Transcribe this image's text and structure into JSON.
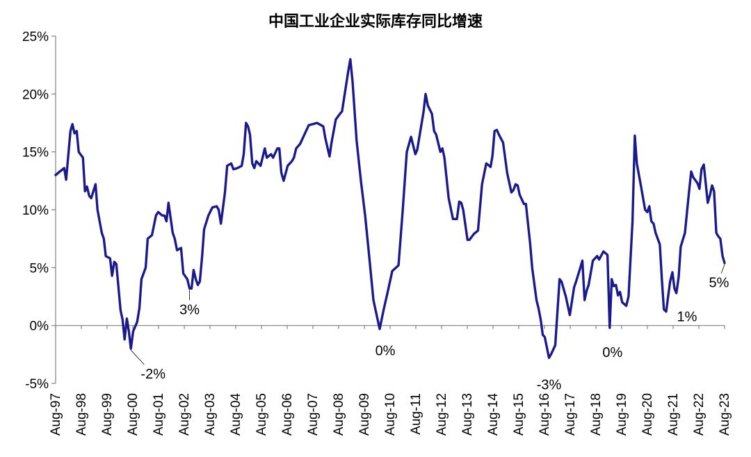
{
  "chart_data": {
    "type": "line",
    "title": "中国工业企业实际库存同比增速",
    "xlabel": "",
    "ylabel": "",
    "ylim": [
      -5,
      25
    ],
    "y_ticks": [
      "-5%",
      "0%",
      "5%",
      "10%",
      "15%",
      "20%",
      "25%"
    ],
    "x_tick_labels": [
      "Aug-97",
      "Aug-98",
      "Aug-99",
      "Aug-00",
      "Aug-01",
      "Aug-02",
      "Aug-03",
      "Aug-04",
      "Aug-05",
      "Aug-06",
      "Aug-07",
      "Aug-08",
      "Aug-09",
      "Aug-10",
      "Aug-11",
      "Aug-12",
      "Aug-13",
      "Aug-14",
      "Aug-15",
      "Aug-16",
      "Aug-17",
      "Aug-18",
      "Aug-19",
      "Aug-20",
      "Aug-21",
      "Aug-22",
      "Aug-23"
    ],
    "grid": false,
    "line_color": "#1a1a8c",
    "series": [
      {
        "values": [
          [
            1997.58,
            13.0
          ],
          [
            1997.75,
            13.3
          ],
          [
            1997.92,
            13.6
          ],
          [
            1998.0,
            12.6
          ],
          [
            1998.17,
            16.8
          ],
          [
            1998.25,
            17.4
          ],
          [
            1998.33,
            16.6
          ],
          [
            1998.42,
            16.8
          ],
          [
            1998.5,
            15.0
          ],
          [
            1998.67,
            14.5
          ],
          [
            1998.75,
            11.6
          ],
          [
            1998.83,
            12.0
          ],
          [
            1998.92,
            11.2
          ],
          [
            1999.0,
            11.0
          ],
          [
            1999.17,
            12.2
          ],
          [
            1999.25,
            10.0
          ],
          [
            1999.42,
            8.0
          ],
          [
            1999.5,
            7.5
          ],
          [
            1999.58,
            6.0
          ],
          [
            1999.75,
            5.8
          ],
          [
            1999.83,
            4.3
          ],
          [
            1999.92,
            5.5
          ],
          [
            2000.0,
            5.3
          ],
          [
            2000.17,
            1.3
          ],
          [
            2000.25,
            0.5
          ],
          [
            2000.33,
            -1.2
          ],
          [
            2000.42,
            0.6
          ],
          [
            2000.5,
            -0.5
          ],
          [
            2000.58,
            -2.0
          ],
          [
            2000.67,
            -0.5
          ],
          [
            2000.83,
            0.3
          ],
          [
            2000.92,
            1.5
          ],
          [
            2001.0,
            4.0
          ],
          [
            2001.17,
            5.0
          ],
          [
            2001.25,
            7.5
          ],
          [
            2001.42,
            7.8
          ],
          [
            2001.58,
            9.5
          ],
          [
            2001.67,
            9.8
          ],
          [
            2001.83,
            9.5
          ],
          [
            2001.92,
            9.5
          ],
          [
            2002.0,
            9.0
          ],
          [
            2002.08,
            10.6
          ],
          [
            2002.25,
            8.0
          ],
          [
            2002.33,
            7.5
          ],
          [
            2002.42,
            6.5
          ],
          [
            2002.58,
            6.7
          ],
          [
            2002.67,
            4.5
          ],
          [
            2002.83,
            4.0
          ],
          [
            2002.92,
            3.2
          ],
          [
            2003.0,
            3.2
          ],
          [
            2003.08,
            4.8
          ],
          [
            2003.17,
            4.0
          ],
          [
            2003.25,
            3.5
          ],
          [
            2003.33,
            3.8
          ],
          [
            2003.42,
            6.0
          ],
          [
            2003.5,
            8.3
          ],
          [
            2003.67,
            9.5
          ],
          [
            2003.83,
            10.2
          ],
          [
            2004.0,
            10.3
          ],
          [
            2004.08,
            10.0
          ],
          [
            2004.17,
            8.8
          ],
          [
            2004.33,
            11.5
          ],
          [
            2004.42,
            13.8
          ],
          [
            2004.58,
            14.0
          ],
          [
            2004.67,
            13.5
          ],
          [
            2004.83,
            13.6
          ],
          [
            2005.0,
            13.8
          ],
          [
            2005.08,
            14.8
          ],
          [
            2005.17,
            17.5
          ],
          [
            2005.25,
            17.2
          ],
          [
            2005.33,
            16.5
          ],
          [
            2005.42,
            14.0
          ],
          [
            2005.5,
            13.6
          ],
          [
            2005.58,
            14.2
          ],
          [
            2005.75,
            13.8
          ],
          [
            2005.92,
            15.3
          ],
          [
            2006.0,
            14.5
          ],
          [
            2006.17,
            14.8
          ],
          [
            2006.25,
            14.5
          ],
          [
            2006.42,
            15.3
          ],
          [
            2006.5,
            15.3
          ],
          [
            2006.58,
            13.2
          ],
          [
            2006.67,
            12.5
          ],
          [
            2006.83,
            13.8
          ],
          [
            2007.0,
            14.2
          ],
          [
            2007.08,
            14.5
          ],
          [
            2007.17,
            15.3
          ],
          [
            2007.33,
            15.7
          ],
          [
            2007.5,
            16.5
          ],
          [
            2007.67,
            17.3
          ],
          [
            2007.83,
            17.4
          ],
          [
            2008.0,
            17.5
          ],
          [
            2008.25,
            17.2
          ],
          [
            2008.33,
            16.2
          ],
          [
            2008.5,
            14.6
          ],
          [
            2008.58,
            15.8
          ],
          [
            2008.75,
            17.8
          ],
          [
            2008.92,
            18.3
          ],
          [
            2009.0,
            18.5
          ],
          [
            2009.25,
            22.0
          ],
          [
            2009.33,
            23.0
          ],
          [
            2009.42,
            21.0
          ],
          [
            2009.58,
            16.0
          ],
          [
            2009.75,
            12.5
          ],
          [
            2009.92,
            9.5
          ],
          [
            2010.08,
            6.0
          ],
          [
            2010.25,
            2.2
          ],
          [
            2010.42,
            0.5
          ],
          [
            2010.5,
            -0.3
          ],
          [
            2010.67,
            1.5
          ],
          [
            2010.83,
            3.0
          ],
          [
            2011.0,
            4.7
          ],
          [
            2011.25,
            5.2
          ],
          [
            2011.42,
            10.0
          ],
          [
            2011.58,
            15.0
          ],
          [
            2011.75,
            16.3
          ],
          [
            2011.92,
            14.8
          ],
          [
            2012.0,
            15.2
          ],
          [
            2012.25,
            18.5
          ],
          [
            2012.33,
            20.0
          ],
          [
            2012.42,
            19.0
          ],
          [
            2012.58,
            18.3
          ],
          [
            2012.67,
            16.8
          ],
          [
            2012.75,
            16.5
          ],
          [
            2012.92,
            15.0
          ],
          [
            2013.0,
            15.3
          ],
          [
            2013.08,
            14.5
          ],
          [
            2013.25,
            11.0
          ],
          [
            2013.42,
            9.2
          ],
          [
            2013.58,
            9.2
          ],
          [
            2013.67,
            10.7
          ],
          [
            2013.75,
            10.6
          ],
          [
            2013.83,
            10.0
          ],
          [
            2014.0,
            7.4
          ],
          [
            2014.08,
            7.4
          ],
          [
            2014.25,
            7.9
          ],
          [
            2014.42,
            8.2
          ],
          [
            2014.58,
            12.2
          ],
          [
            2014.75,
            14.0
          ],
          [
            2014.92,
            13.7
          ],
          [
            2015.0,
            14.7
          ],
          [
            2015.08,
            16.8
          ],
          [
            2015.17,
            16.9
          ],
          [
            2015.25,
            16.5
          ],
          [
            2015.42,
            15.8
          ],
          [
            2015.58,
            13.2
          ],
          [
            2015.75,
            11.5
          ],
          [
            2015.83,
            11.7
          ],
          [
            2015.92,
            12.2
          ],
          [
            2016.0,
            12.1
          ],
          [
            2016.08,
            11.3
          ],
          [
            2016.25,
            10.5
          ],
          [
            2016.33,
            10.5
          ],
          [
            2016.5,
            7.0
          ],
          [
            2016.58,
            5.0
          ],
          [
            2016.75,
            2.2
          ],
          [
            2016.83,
            1.5
          ],
          [
            2016.92,
            0.5
          ],
          [
            2017.0,
            -0.8
          ],
          [
            2017.08,
            -1.0
          ],
          [
            2017.25,
            -2.8
          ],
          [
            2017.33,
            -2.5
          ],
          [
            2017.5,
            -1.7
          ],
          [
            2017.67,
            4.0
          ],
          [
            2017.75,
            3.8
          ],
          [
            2017.92,
            2.5
          ],
          [
            2018.08,
            0.9
          ],
          [
            2018.25,
            3.3
          ],
          [
            2018.33,
            3.8
          ],
          [
            2018.5,
            5.0
          ],
          [
            2018.58,
            5.6
          ],
          [
            2018.67,
            2.2
          ],
          [
            2018.75,
            3.0
          ],
          [
            2018.83,
            3.5
          ],
          [
            2019.0,
            5.6
          ],
          [
            2019.17,
            6.0
          ],
          [
            2019.25,
            5.7
          ],
          [
            2019.42,
            6.4
          ],
          [
            2019.58,
            6.1
          ],
          [
            2019.67,
            -0.2
          ],
          [
            2019.75,
            4.0
          ],
          [
            2019.83,
            3.4
          ],
          [
            2019.92,
            3.5
          ],
          [
            2020.0,
            2.6
          ],
          [
            2020.08,
            2.9
          ],
          [
            2020.17,
            2.0
          ],
          [
            2020.33,
            1.7
          ],
          [
            2020.42,
            2.5
          ],
          [
            2020.58,
            9.0
          ],
          [
            2020.67,
            16.4
          ],
          [
            2020.75,
            14.0
          ],
          [
            2020.92,
            12.0
          ],
          [
            2021.08,
            10.0
          ],
          [
            2021.17,
            9.8
          ],
          [
            2021.25,
            10.3
          ],
          [
            2021.33,
            9.0
          ],
          [
            2021.42,
            8.8
          ],
          [
            2021.5,
            8.0
          ],
          [
            2021.67,
            7.0
          ],
          [
            2021.75,
            4.0
          ],
          [
            2021.83,
            1.4
          ],
          [
            2021.92,
            1.2
          ],
          [
            2022.0,
            2.5
          ],
          [
            2022.08,
            3.8
          ],
          [
            2022.17,
            4.6
          ],
          [
            2022.25,
            3.2
          ],
          [
            2022.33,
            2.8
          ],
          [
            2022.42,
            4.2
          ],
          [
            2022.5,
            6.8
          ],
          [
            2022.67,
            8.0
          ],
          [
            2022.83,
            11.5
          ],
          [
            2022.92,
            13.3
          ],
          [
            2023.0,
            12.8
          ],
          [
            2023.17,
            12.3
          ],
          [
            2023.25,
            11.8
          ],
          [
            2023.33,
            13.5
          ],
          [
            2023.42,
            13.9
          ],
          [
            2023.58,
            10.6
          ],
          [
            2023.67,
            11.3
          ],
          [
            2023.75,
            12.1
          ],
          [
            2023.83,
            11.6
          ],
          [
            2023.92,
            8.0
          ],
          [
            2024.0,
            7.7
          ],
          [
            2024.08,
            7.5
          ],
          [
            2024.17,
            6.0
          ],
          [
            2024.25,
            5.4
          ]
        ]
      }
    ],
    "annotations": [
      {
        "text": "-2%",
        "x": 2000.58,
        "y": -2.0
      },
      {
        "text": "3%",
        "x": 2002.92,
        "y": 3.2
      },
      {
        "text": "0%",
        "x": 2010.5,
        "y": -0.3
      },
      {
        "text": "-3%",
        "x": 2017.25,
        "y": -2.8
      },
      {
        "text": "0%",
        "x": 2019.67,
        "y": -0.2
      },
      {
        "text": "1%",
        "x": 2021.92,
        "y": 1.2
      },
      {
        "text": "5%",
        "x": 2024.25,
        "y": 5.4
      }
    ]
  }
}
